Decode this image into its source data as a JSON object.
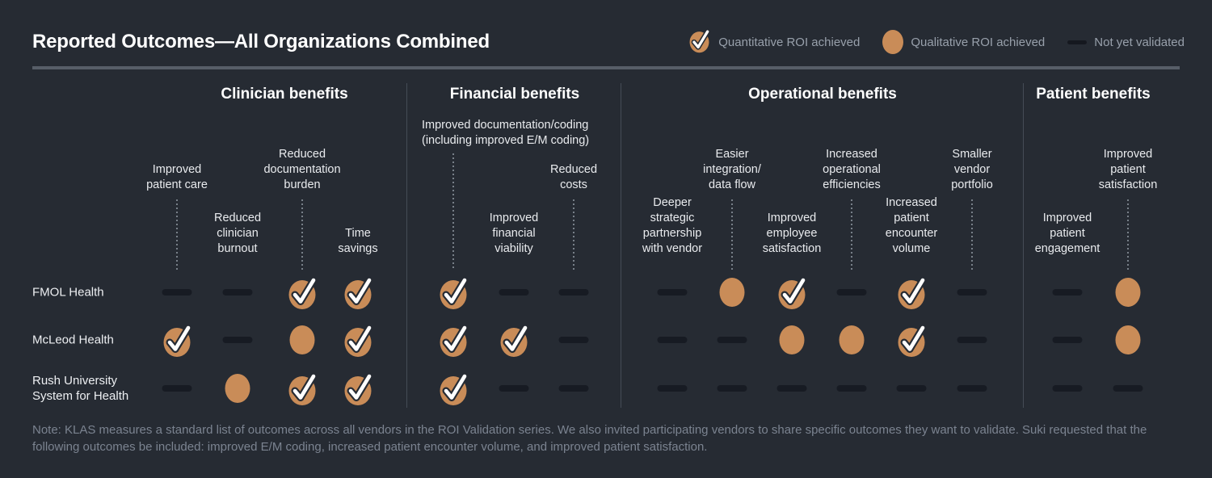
{
  "title": "Reported Outcomes—All Organizations Combined",
  "legend": {
    "quantitative": "Quantitative ROI achieved",
    "qualitative": "Qualitative ROI achieved",
    "not_validated": "Not yet validated"
  },
  "note": "Note: KLAS measures a standard list of outcomes across all vendors in the ROI Validation series. We also invited participating vendors to share specific outcomes they want to validate. Suki requested that the\nfollowing outcomes be included: improved E/M coding, increased patient encounter volume, and improved patient satisfaction.",
  "colors": {
    "background": "#262B33",
    "accent_orange": "#C98C58",
    "dash": "#171B23",
    "text_primary": "#FFFFFF",
    "text_secondary": "#E9EBEE",
    "text_muted": "#98A0AB",
    "note_text": "#7B8390",
    "title_rule": "#575E68",
    "section_divider": "#454C56",
    "leader_dots": "#788089"
  },
  "chart_data": {
    "type": "table",
    "title": "Reported Outcomes—All Organizations Combined",
    "status_legend": {
      "quant": "Quantitative ROI achieved",
      "qual": "Qualitative ROI achieved",
      "none": "Not yet validated"
    },
    "sections": [
      {
        "id": "clinician",
        "title": "Clinician benefits",
        "columns": [
          {
            "label": "Improved\npatient care",
            "pos": "high"
          },
          {
            "label": "Reduced\nclinician\nburnout",
            "pos": "low"
          },
          {
            "label": "Reduced\ndocumentation\nburden",
            "pos": "high"
          },
          {
            "label": "Time\nsavings",
            "pos": "low"
          }
        ]
      },
      {
        "id": "financial",
        "title": "Financial benefits",
        "columns": [
          {
            "label": "Improved documentation/coding\n(including improved E/M coding)",
            "pos": "top"
          },
          {
            "label": "Improved\nfinancial\nviability",
            "pos": "low"
          },
          {
            "label": "Reduced\ncosts",
            "pos": "high"
          }
        ]
      },
      {
        "id": "operational",
        "title": "Operational benefits",
        "columns": [
          {
            "label": "Deeper\nstrategic\npartnership\nwith vendor",
            "pos": "low"
          },
          {
            "label": "Easier\nintegration/\ndata flow",
            "pos": "high"
          },
          {
            "label": "Improved\nemployee\nsatisfaction",
            "pos": "low"
          },
          {
            "label": "Increased\noperational\nefficiencies",
            "pos": "high"
          },
          {
            "label": "Increased\npatient\nencounter\nvolume",
            "pos": "low"
          },
          {
            "label": "Smaller\nvendor\nportfolio",
            "pos": "high"
          }
        ]
      },
      {
        "id": "patient",
        "title": "Patient benefits",
        "columns": [
          {
            "label": "Improved\npatient\nengagement",
            "pos": "low"
          },
          {
            "label": "Improved\npatient\nsatisfaction",
            "pos": "high"
          }
        ]
      }
    ],
    "rows": [
      {
        "org": "FMOL Health",
        "values": {
          "clinician": [
            "none",
            "none",
            "quant",
            "quant"
          ],
          "financial": [
            "quant",
            "none",
            "none"
          ],
          "operational": [
            "none",
            "qual",
            "quant",
            "none",
            "quant",
            "none"
          ],
          "patient": [
            "none",
            "qual"
          ]
        }
      },
      {
        "org": "McLeod Health",
        "values": {
          "clinician": [
            "quant",
            "none",
            "qual",
            "quant"
          ],
          "financial": [
            "quant",
            "quant",
            "none"
          ],
          "operational": [
            "none",
            "none",
            "qual",
            "qual",
            "quant",
            "none"
          ],
          "patient": [
            "none",
            "qual"
          ]
        }
      },
      {
        "org": "Rush University\nSystem for Health",
        "values": {
          "clinician": [
            "none",
            "qual",
            "quant",
            "quant"
          ],
          "financial": [
            "quant",
            "none",
            "none"
          ],
          "operational": [
            "none",
            "none",
            "none",
            "none",
            "none",
            "none"
          ],
          "patient": [
            "none",
            "none"
          ]
        }
      }
    ]
  }
}
